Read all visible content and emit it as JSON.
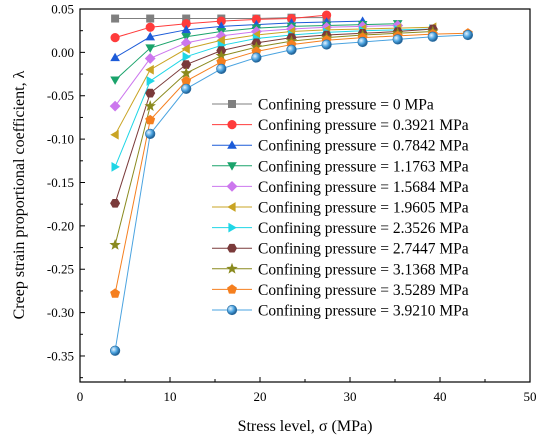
{
  "chart_data": {
    "type": "line",
    "xlabel": "Stress level, σ (MPa)",
    "ylabel": "Creep strain proportional coefficient, λ",
    "xlim": [
      0,
      50
    ],
    "ylim": [
      -0.38,
      0.05
    ],
    "x_ticks": [
      "0",
      "10",
      "20",
      "30",
      "40",
      "50"
    ],
    "y_ticks": [
      "0.05",
      "0.00",
      "-0.05",
      "-0.10",
      "-0.15",
      "-0.20",
      "-0.25",
      "-0.30",
      "-0.35"
    ],
    "legend_position": "right",
    "series": [
      {
        "name": "Confining pressure = 0 MPa",
        "color": "#7f7f7f",
        "marker": "square",
        "x": [
          3.9,
          7.8,
          11.8,
          15.7,
          19.6,
          23.5,
          27.4
        ],
        "y": [
          0.039,
          0.039,
          0.039,
          0.039,
          0.039,
          0.04,
          0.04
        ]
      },
      {
        "name": "Confining pressure = 0.3921 MPa",
        "color": "#ff3b3b",
        "marker": "circle",
        "x": [
          3.9,
          7.8,
          11.8,
          15.7,
          19.6,
          23.5,
          27.4
        ],
        "y": [
          0.017,
          0.029,
          0.033,
          0.036,
          0.038,
          0.039,
          0.043
        ]
      },
      {
        "name": "Confining pressure = 0.7842 MPa",
        "color": "#1c5bd8",
        "marker": "triangle-up",
        "x": [
          3.9,
          7.8,
          11.8,
          15.7,
          19.6,
          23.5,
          27.4,
          31.4
        ],
        "y": [
          -0.006,
          0.018,
          0.026,
          0.03,
          0.032,
          0.034,
          0.035,
          0.036
        ]
      },
      {
        "name": "Confining pressure = 1.1763 MPa",
        "color": "#1aa36b",
        "marker": "triangle-down",
        "x": [
          3.9,
          7.8,
          11.8,
          15.7,
          19.6,
          23.5,
          27.4,
          31.4,
          35.3
        ],
        "y": [
          -0.032,
          0.005,
          0.018,
          0.024,
          0.028,
          0.03,
          0.031,
          0.032,
          0.033
        ]
      },
      {
        "name": "Confining pressure = 1.5684 MPa",
        "color": "#cc77ee",
        "marker": "diamond",
        "x": [
          3.9,
          7.8,
          11.8,
          15.7,
          19.6,
          23.5,
          27.4,
          31.4,
          35.3
        ],
        "y": [
          -0.062,
          -0.007,
          0.011,
          0.019,
          0.024,
          0.027,
          0.029,
          0.03,
          0.031
        ]
      },
      {
        "name": "Confining pressure = 1.9605 MPa",
        "color": "#c9a424",
        "marker": "triangle-left",
        "x": [
          3.9,
          7.8,
          11.8,
          15.7,
          19.6,
          23.5,
          27.4,
          31.4,
          35.3,
          39.2
        ],
        "y": [
          -0.095,
          -0.02,
          0.004,
          0.014,
          0.02,
          0.024,
          0.026,
          0.027,
          0.028,
          0.029
        ]
      },
      {
        "name": "Confining pressure = 2.3526 MPa",
        "color": "#1fd6e6",
        "marker": "triangle-right",
        "x": [
          3.9,
          7.8,
          11.8,
          15.7,
          19.6,
          23.5,
          27.4,
          31.4,
          35.3,
          39.2
        ],
        "y": [
          -0.132,
          -0.033,
          -0.005,
          0.008,
          0.016,
          0.02,
          0.023,
          0.025,
          0.026,
          0.027
        ]
      },
      {
        "name": "Confining pressure = 2.7447 MPa",
        "color": "#7a3a3a",
        "marker": "hexagon",
        "x": [
          3.9,
          7.8,
          11.8,
          15.7,
          19.6,
          23.5,
          27.4,
          31.4,
          35.3,
          39.2
        ],
        "y": [
          -0.174,
          -0.047,
          -0.014,
          0.002,
          0.011,
          0.017,
          0.02,
          0.022,
          0.024,
          0.027
        ]
      },
      {
        "name": "Confining pressure = 3.1368 MPa",
        "color": "#8a8a1e",
        "marker": "star",
        "x": [
          3.9,
          7.8,
          11.8,
          15.7,
          19.6,
          23.5,
          27.4,
          31.4,
          35.3,
          39.2
        ],
        "y": [
          -0.222,
          -0.062,
          -0.024,
          -0.004,
          0.006,
          0.013,
          0.017,
          0.02,
          0.022,
          0.024
        ]
      },
      {
        "name": "Confining pressure = 3.5289 MPa",
        "color": "#f57f1f",
        "marker": "pentagon",
        "x": [
          3.9,
          7.8,
          11.8,
          15.7,
          19.6,
          23.5,
          27.4,
          31.4,
          35.3,
          39.2,
          43.1
        ],
        "y": [
          -0.278,
          -0.078,
          -0.033,
          -0.011,
          0.001,
          0.009,
          0.014,
          0.017,
          0.019,
          0.021,
          0.022
        ]
      },
      {
        "name": "Confining pressure = 3.9210 MPa",
        "color": "#4aa3e0",
        "marker": "sphere",
        "x": [
          3.9,
          7.8,
          11.8,
          15.7,
          19.6,
          23.5,
          27.4,
          31.4,
          35.3,
          39.2,
          43.1
        ],
        "y": [
          -0.344,
          -0.094,
          -0.042,
          -0.019,
          -0.006,
          0.003,
          0.009,
          0.012,
          0.015,
          0.018,
          0.02
        ]
      }
    ]
  }
}
